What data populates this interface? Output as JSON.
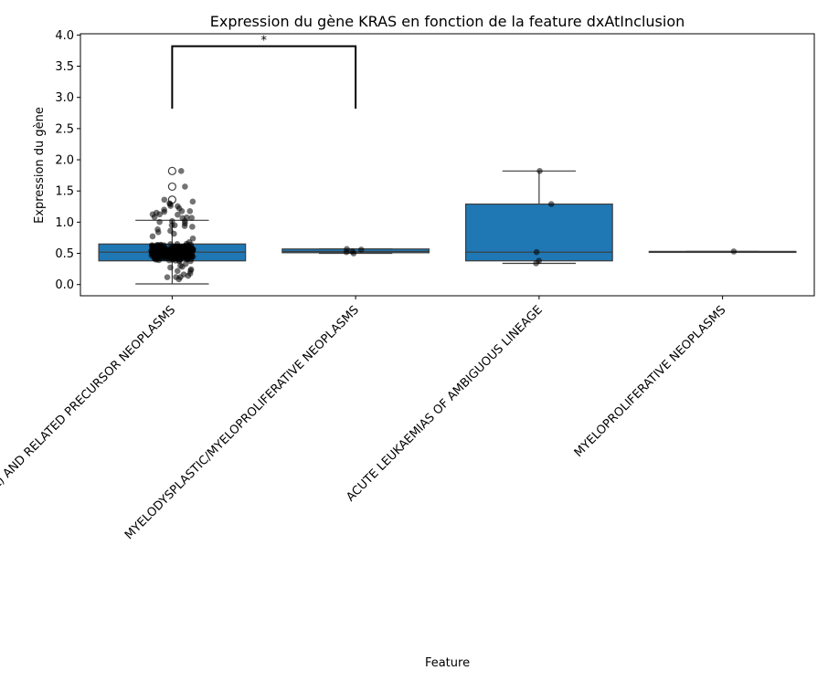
{
  "chart_data": {
    "type": "box",
    "title": "Expression du gène KRAS en fonction de la feature dxAtInclusion",
    "xlabel": "Feature",
    "ylabel": "Expression du gène",
    "ylim": [
      -0.18,
      4.02
    ],
    "yticks": [
      0.0,
      0.5,
      1.0,
      1.5,
      2.0,
      2.5,
      3.0,
      3.5,
      4.0
    ],
    "ytick_labels": [
      "0.0",
      "0.5",
      "1.0",
      "1.5",
      "2.0",
      "2.5",
      "3.0",
      "3.5",
      "4.0"
    ],
    "categories": [
      "ACUTE MYELOID LEUKAEMIA (AML) AND RELATED PRECURSOR NEOPLASMS",
      "MYELODYSPLASTIC/MYELOPROLIFERATIVE NEOPLASMS",
      "ACUTE LEUKAEMIAS OF AMBIGUOUS LINEAGE",
      "MYELOPROLIFERATIVE NEOPLASMS"
    ],
    "box_color": "#1f77b4",
    "grid": false,
    "boxes": [
      {
        "whisker_low": 0.01,
        "q1": 0.38,
        "median": 0.52,
        "q3": 0.65,
        "whisker_high": 1.03,
        "outliers": [
          1.36,
          1.57,
          1.82
        ]
      },
      {
        "whisker_low": 0.5,
        "q1": 0.51,
        "median": 0.53,
        "q3": 0.57,
        "whisker_high": 0.57,
        "outliers": []
      },
      {
        "whisker_low": 0.34,
        "q1": 0.38,
        "median": 0.52,
        "q3": 1.29,
        "whisker_high": 1.82,
        "outliers": []
      },
      {
        "whisker_low": 0.53,
        "q1": 0.53,
        "median": 0.53,
        "q3": 0.53,
        "whisker_high": 0.53,
        "outliers": []
      }
    ],
    "strip_points": [
      {
        "category": 1,
        "values": [
          0.5,
          0.52,
          0.53,
          0.56,
          0.57
        ]
      },
      {
        "category": 2,
        "values": [
          0.34,
          0.38,
          0.52,
          1.29,
          1.82
        ]
      },
      {
        "category": 3,
        "values": [
          0.53
        ]
      }
    ],
    "significance": [
      {
        "from": 0,
        "to": 1,
        "y_low": 2.82,
        "y_high": 3.82,
        "label": "*"
      }
    ]
  }
}
